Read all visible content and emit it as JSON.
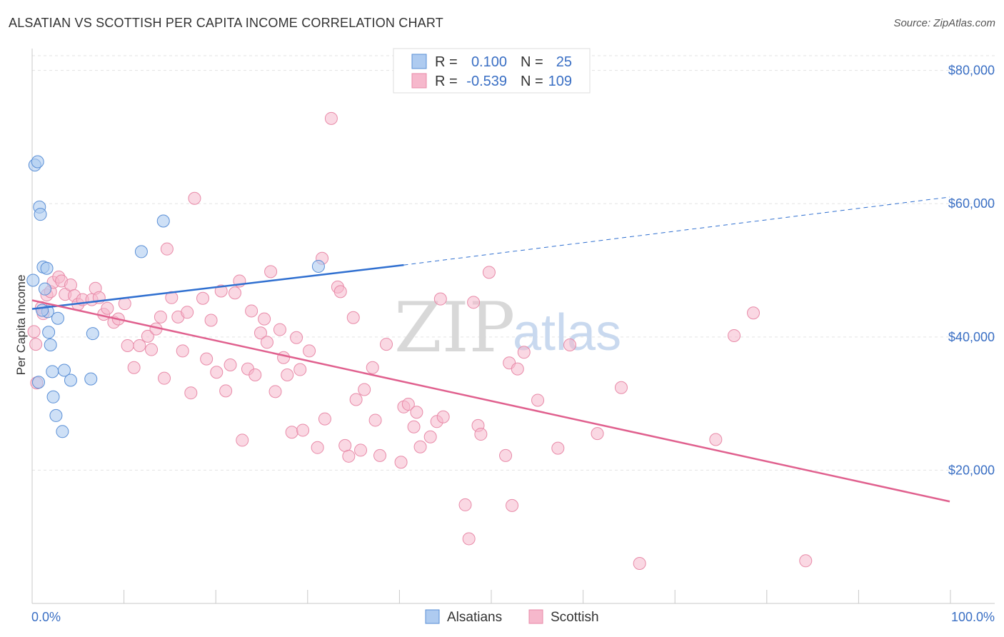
{
  "title": "ALSATIAN VS SCOTTISH PER CAPITA INCOME CORRELATION CHART",
  "source": "Source: ZipAtlas.com",
  "watermark": {
    "zip": "ZIP",
    "atlas": "atlas"
  },
  "colors": {
    "blue_fill": "#aecbf0",
    "blue_stroke": "#5a8fd6",
    "blue_line": "#2f6fd0",
    "pink_fill": "#f6b8cc",
    "pink_stroke": "#e88aa8",
    "pink_line": "#e0608e",
    "tick_text": "#3a6fc4"
  },
  "legend": {
    "rows": [
      {
        "r_label": "R =",
        "r_value": "0.100",
        "n_label": "N =",
        "n_value": "25"
      },
      {
        "r_label": "R =",
        "r_value": "-0.539",
        "n_label": "N =",
        "n_value": "109"
      }
    ]
  },
  "chart_data": {
    "type": "scatter",
    "title": "ALSATIAN VS SCOTTISH PER CAPITA INCOME CORRELATION CHART",
    "xlabel": "",
    "ylabel": "Per Capita Income",
    "xlim": [
      0,
      100
    ],
    "ylim": [
      0,
      82000
    ],
    "x_tick_labels": [
      "0.0%",
      "100.0%"
    ],
    "y_ticks": [
      20000,
      40000,
      60000,
      80000
    ],
    "y_tick_labels": [
      "$20,000",
      "$40,000",
      "$60,000",
      "$80,000"
    ],
    "grid": true,
    "legend_position": "bottom-center",
    "series": [
      {
        "name": "Alsatians",
        "color": "#5a8fd6",
        "R": 0.1,
        "N": 25,
        "trend": {
          "x0": 0,
          "y0": 44200,
          "x1": 40.5,
          "y1": 50800,
          "dashed_to_x": 100,
          "dashed_to_y": 61000
        },
        "points": [
          [
            0.1,
            48500
          ],
          [
            0.3,
            65800
          ],
          [
            0.6,
            66300
          ],
          [
            0.8,
            59500
          ],
          [
            0.9,
            58400
          ],
          [
            1.2,
            50500
          ],
          [
            1.4,
            47200
          ],
          [
            1.6,
            50300
          ],
          [
            1.7,
            43800
          ],
          [
            1.8,
            40700
          ],
          [
            2.0,
            38800
          ],
          [
            2.2,
            34800
          ],
          [
            2.3,
            31000
          ],
          [
            2.6,
            28200
          ],
          [
            3.3,
            25800
          ],
          [
            2.8,
            42800
          ],
          [
            3.5,
            35000
          ],
          [
            4.2,
            33500
          ],
          [
            6.6,
            40500
          ],
          [
            6.4,
            33700
          ],
          [
            11.9,
            52800
          ],
          [
            14.3,
            57400
          ],
          [
            31.2,
            50600
          ],
          [
            0.7,
            33200
          ],
          [
            1.1,
            44000
          ]
        ]
      },
      {
        "name": "Scottish",
        "color": "#e88aa8",
        "R": -0.539,
        "N": 109,
        "trend": {
          "x0": 0,
          "y0": 45500,
          "x1": 100,
          "y1": 15300
        },
        "points": [
          [
            0.2,
            40800
          ],
          [
            0.4,
            38900
          ],
          [
            0.5,
            33100
          ],
          [
            1.0,
            44400
          ],
          [
            1.2,
            43500
          ],
          [
            1.6,
            46300
          ],
          [
            2.0,
            46800
          ],
          [
            2.3,
            48200
          ],
          [
            2.9,
            49000
          ],
          [
            3.2,
            48400
          ],
          [
            3.6,
            46400
          ],
          [
            4.2,
            47800
          ],
          [
            4.6,
            46200
          ],
          [
            5.0,
            44900
          ],
          [
            5.5,
            45600
          ],
          [
            6.5,
            45600
          ],
          [
            6.9,
            47300
          ],
          [
            7.3,
            45900
          ],
          [
            7.8,
            43400
          ],
          [
            8.2,
            44300
          ],
          [
            8.9,
            42200
          ],
          [
            9.4,
            42700
          ],
          [
            10.1,
            45000
          ],
          [
            10.4,
            38700
          ],
          [
            11.1,
            35400
          ],
          [
            11.7,
            38700
          ],
          [
            12.6,
            40100
          ],
          [
            13.0,
            38100
          ],
          [
            13.5,
            41200
          ],
          [
            14.0,
            43000
          ],
          [
            14.4,
            33800
          ],
          [
            14.7,
            53200
          ],
          [
            15.2,
            45900
          ],
          [
            15.9,
            43000
          ],
          [
            16.4,
            37900
          ],
          [
            16.9,
            43700
          ],
          [
            17.3,
            31600
          ],
          [
            17.7,
            60800
          ],
          [
            18.6,
            45800
          ],
          [
            19.0,
            36700
          ],
          [
            19.5,
            42500
          ],
          [
            20.1,
            34700
          ],
          [
            20.6,
            46900
          ],
          [
            21.1,
            31900
          ],
          [
            21.6,
            35800
          ],
          [
            22.1,
            46600
          ],
          [
            22.6,
            48400
          ],
          [
            22.9,
            24500
          ],
          [
            23.5,
            35200
          ],
          [
            23.9,
            43900
          ],
          [
            24.3,
            34300
          ],
          [
            24.9,
            40600
          ],
          [
            25.3,
            42700
          ],
          [
            25.6,
            39200
          ],
          [
            26.0,
            49800
          ],
          [
            26.5,
            31800
          ],
          [
            27.0,
            41100
          ],
          [
            27.4,
            36900
          ],
          [
            27.8,
            34300
          ],
          [
            28.3,
            25700
          ],
          [
            28.8,
            39900
          ],
          [
            29.2,
            35100
          ],
          [
            29.5,
            26000
          ],
          [
            30.2,
            37900
          ],
          [
            31.1,
            23400
          ],
          [
            31.6,
            51800
          ],
          [
            31.9,
            27700
          ],
          [
            32.6,
            72800
          ],
          [
            33.3,
            47500
          ],
          [
            33.6,
            46800
          ],
          [
            34.1,
            23700
          ],
          [
            34.5,
            22100
          ],
          [
            35.0,
            42900
          ],
          [
            35.3,
            30600
          ],
          [
            35.8,
            23000
          ],
          [
            36.2,
            32100
          ],
          [
            37.1,
            35400
          ],
          [
            37.4,
            27500
          ],
          [
            37.9,
            22200
          ],
          [
            38.6,
            38900
          ],
          [
            40.2,
            21200
          ],
          [
            40.5,
            29500
          ],
          [
            41.0,
            29900
          ],
          [
            41.6,
            26500
          ],
          [
            41.9,
            28700
          ],
          [
            42.3,
            23500
          ],
          [
            43.4,
            25000
          ],
          [
            44.1,
            27300
          ],
          [
            44.5,
            45700
          ],
          [
            44.8,
            28000
          ],
          [
            47.2,
            14800
          ],
          [
            47.6,
            9700
          ],
          [
            48.1,
            45200
          ],
          [
            48.6,
            26700
          ],
          [
            48.9,
            25400
          ],
          [
            49.8,
            49700
          ],
          [
            51.6,
            22200
          ],
          [
            52.0,
            36100
          ],
          [
            52.3,
            14700
          ],
          [
            52.9,
            35200
          ],
          [
            53.6,
            37700
          ],
          [
            55.1,
            30500
          ],
          [
            57.3,
            23300
          ],
          [
            58.6,
            38800
          ],
          [
            61.6,
            25500
          ],
          [
            64.2,
            32400
          ],
          [
            66.2,
            6000
          ],
          [
            74.5,
            24600
          ],
          [
            76.5,
            40200
          ],
          [
            78.6,
            43600
          ],
          [
            84.3,
            6400
          ]
        ]
      }
    ]
  }
}
